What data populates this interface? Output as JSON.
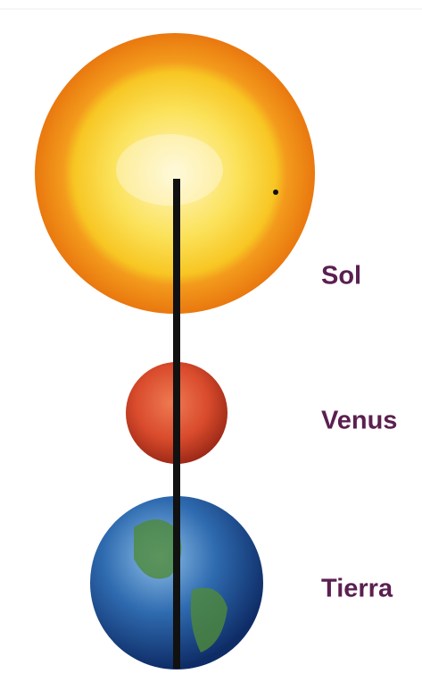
{
  "nodes": [
    {
      "label": "Sol"
    },
    {
      "label": "Venus"
    },
    {
      "label": "Tierra"
    }
  ]
}
